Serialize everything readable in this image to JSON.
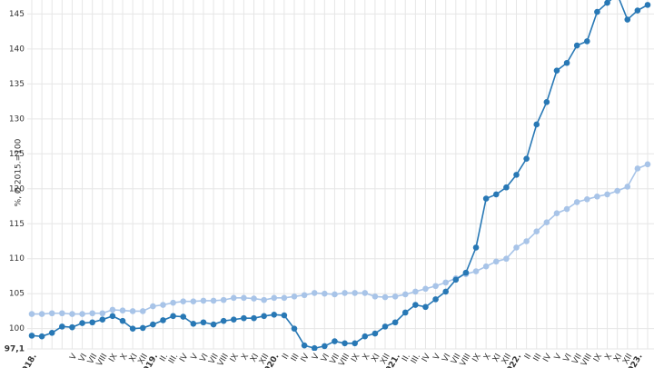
{
  "chart_data": {
    "type": "line",
    "y_label": "%, Ø 2015.=100",
    "categories": [
      "2018.",
      null,
      null,
      null,
      "V",
      "VI",
      "VII",
      "VIII",
      "IX",
      "X",
      "XI",
      "XII",
      "2019.",
      "II.",
      "III.",
      "IV",
      "V",
      "VI",
      "VII",
      "VIII",
      "IX",
      "X",
      "XI",
      "XII",
      "2020.",
      "II",
      "III",
      "IV",
      "V",
      "VI",
      "VII",
      "VIII",
      "IX",
      "X",
      "XI",
      "XII",
      "2021.",
      "II.",
      "III.",
      "IV",
      "V",
      "VI",
      "VII",
      "VIII",
      "IX",
      "X",
      "XI",
      "XII",
      "2022.",
      "II",
      "III",
      "IV",
      "V",
      "VI",
      "VII",
      "VIII",
      "IX",
      "X",
      "XI",
      "XII",
      "2023.",
      null
    ],
    "series": [
      {
        "color": "#2878b5",
        "values": [
          99.0,
          98.9,
          99.4,
          100.3,
          100.2,
          100.8,
          100.9,
          101.3,
          101.8,
          101.1,
          100.0,
          100.1,
          100.6,
          101.2,
          101.8,
          101.7,
          100.7,
          100.9,
          100.6,
          101.1,
          101.3,
          101.5,
          101.5,
          101.8,
          102.0,
          101.9,
          100.0,
          97.6,
          97.2,
          97.5,
          98.2,
          97.9,
          97.9,
          98.9,
          99.3,
          100.3,
          100.9,
          102.3,
          103.4,
          103.1,
          104.2,
          105.3,
          107.0,
          108.0,
          111.6,
          118.6,
          119.2,
          120.2,
          122.0,
          124.3,
          129.2,
          132.4,
          136.9,
          138.0,
          140.5,
          141.1,
          145.3,
          146.6,
          147.8,
          144.2,
          145.5,
          146.3
        ]
      },
      {
        "color": "#a8c4e8",
        "values": [
          102.1,
          102.1,
          102.2,
          102.2,
          102.1,
          102.1,
          102.2,
          102.2,
          102.7,
          102.6,
          102.5,
          102.5,
          103.2,
          103.4,
          103.7,
          103.9,
          103.9,
          104.0,
          104.0,
          104.1,
          104.4,
          104.4,
          104.3,
          104.1,
          104.4,
          104.4,
          104.6,
          104.8,
          105.1,
          105.0,
          104.9,
          105.1,
          105.1,
          105.1,
          104.6,
          104.5,
          104.6,
          104.9,
          105.3,
          105.7,
          106.1,
          106.6,
          107.2,
          107.8,
          108.2,
          108.9,
          109.6,
          110.0,
          111.6,
          112.5,
          113.9,
          115.2,
          116.5,
          117.1,
          118.1,
          118.5,
          118.9,
          119.2,
          119.7,
          120.3,
          122.9,
          123.5
        ]
      }
    ],
    "ylim": [
      97.1,
      147
    ],
    "yticks": [
      {
        "value": 97.1,
        "label": "97,1"
      },
      100,
      105,
      110,
      115,
      120,
      125,
      130,
      135,
      140,
      145
    ],
    "grid": true
  }
}
